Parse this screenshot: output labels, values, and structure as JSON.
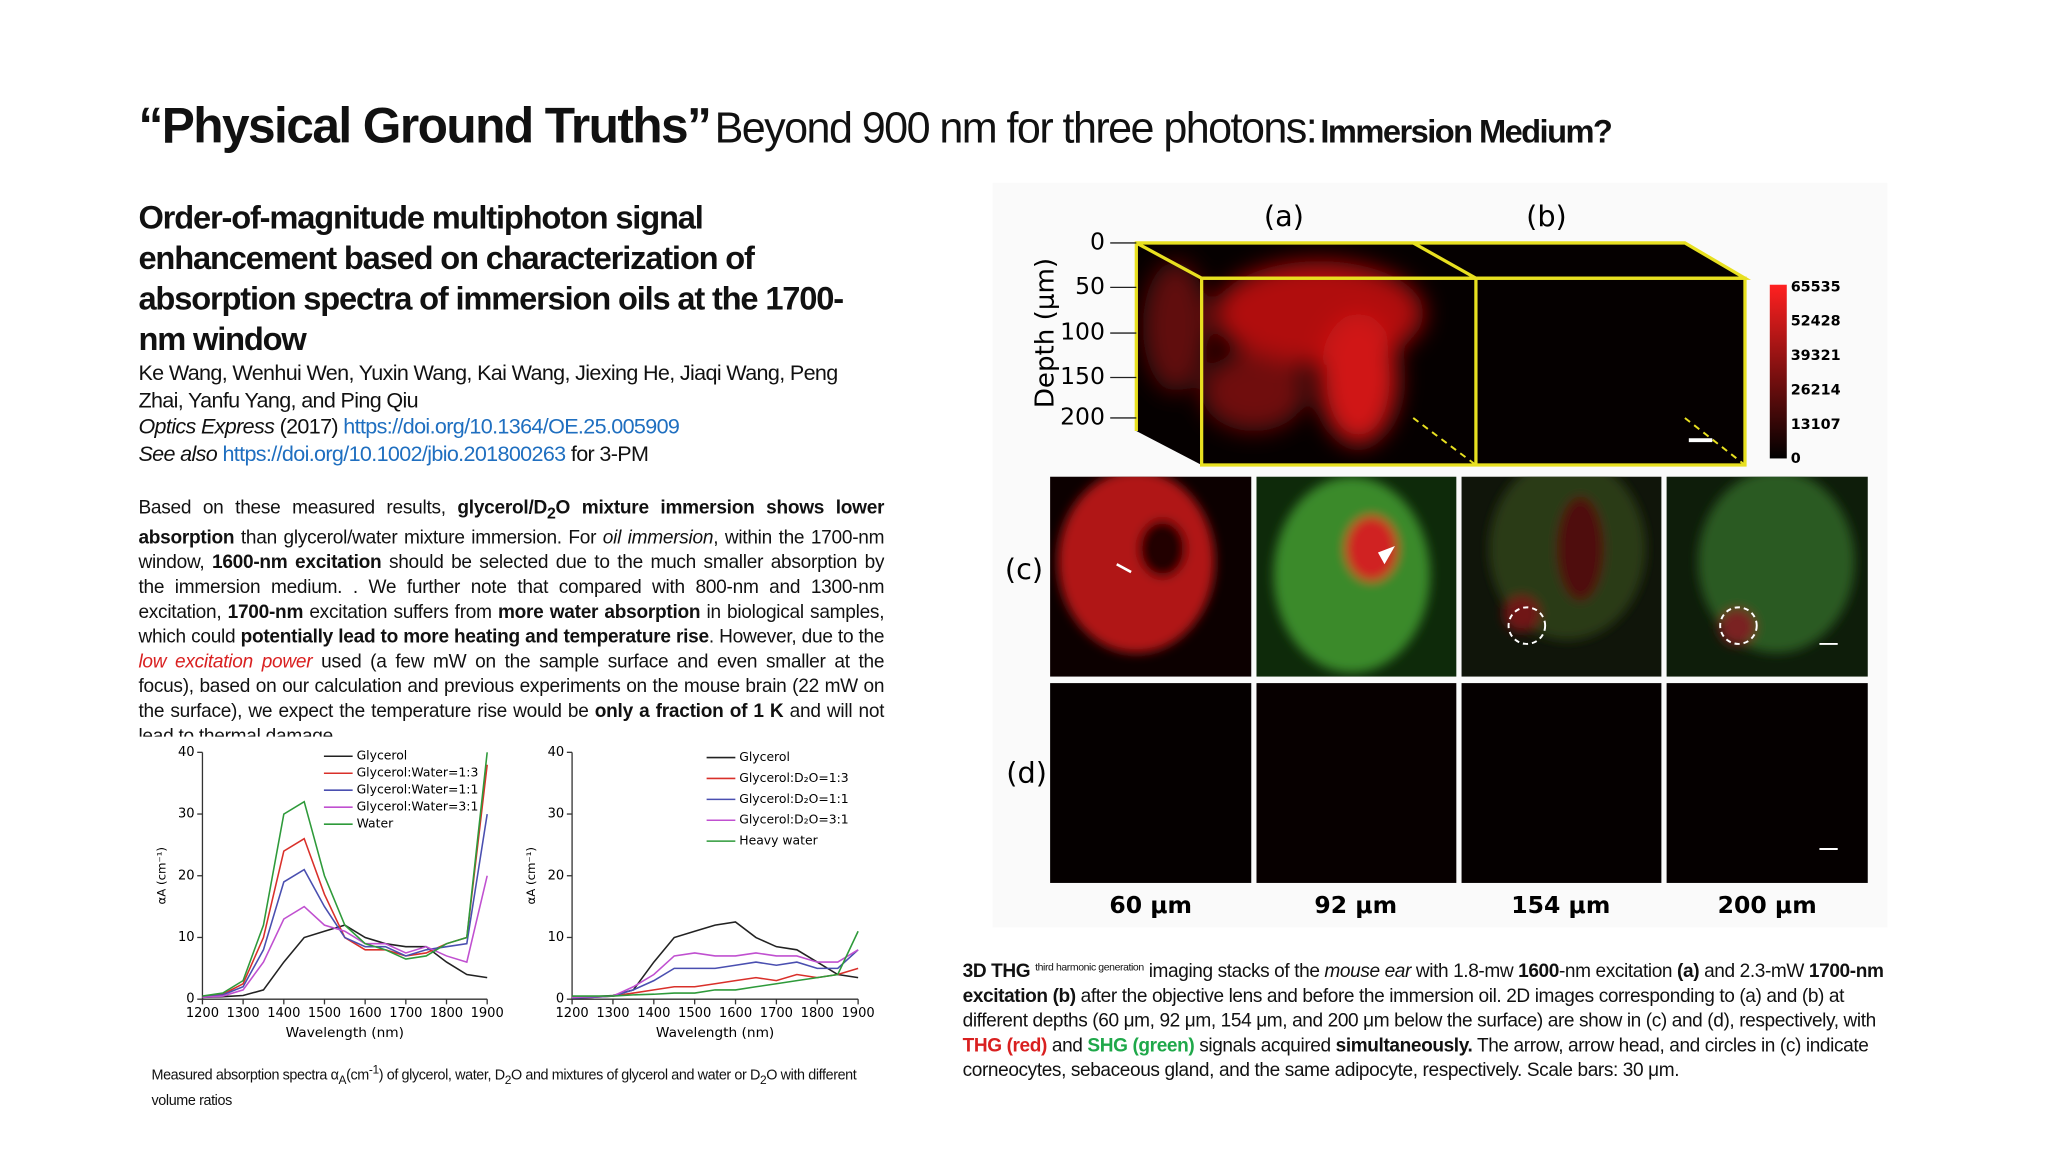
{
  "header": {
    "title_bold": "“Physical Ground Truths”",
    "title_regular": "Beyond 900 nm for three photons:",
    "title_tail": "Immersion Medium?"
  },
  "paper": {
    "title": "Order-of-magnitude multiphoton signal enhancement based on characterization of absorption spectra of immersion oils at the 1700-nm window",
    "authors": "Ke Wang, Wenhui Wen, Yuxin Wang, Kai Wang, Jiexing He, Jiaqi Wang, Peng Zhai, Yanfu Yang, and Ping Qiu",
    "journal": "Optics Express",
    "year": "(2017)",
    "doi": "https://doi.org/10.1364/OE.25.005909",
    "see_also_label": "See also",
    "see_also_doi": "https://doi.org/10.1002/jbio.201800263",
    "see_also_note": "for 3-PM"
  },
  "body": {
    "runs": [
      "Based on these measured results, ",
      "glycerol/D",
      "2",
      "O mixture immersion shows lower absorption",
      " than glycerol/water mixture immersion. For ",
      "oil immersion",
      ", within the 1700-nm window, ",
      "1600-nm excitation",
      " should be selected due to the much smaller absorption by the immersion medium. . We further note that compared with 800-nm and 1300-nm excitation, ",
      "1700-nm",
      " excitation suffers from ",
      "more water absorption",
      " in biological samples, which could ",
      "potentially lead to more heating and temperature rise",
      ". However, due to the ",
      "low excitation power",
      " used (a few mW on the sample surface and even smaller at the focus), based on our calculation and previous experiments on the mouse brain (22 mW on the surface), we expect the temperature rise would be ",
      "only a fraction of 1 K",
      " and will not lead to thermal damage."
    ]
  },
  "left_caption": {
    "runs": [
      "Measured absorption spectra α",
      "A",
      "(cm",
      "-1",
      ") of glycerol, water, D",
      "2",
      "O and mixtures of glycerol and water or D",
      "2",
      "O with different volume ratios"
    ]
  },
  "chart_data": [
    {
      "type": "line",
      "xlabel": "Wavelength (nm)",
      "ylabel": "αA (cm⁻¹)",
      "x": [
        1200,
        1250,
        1300,
        1350,
        1400,
        1450,
        1500,
        1550,
        1600,
        1650,
        1700,
        1750,
        1800,
        1850,
        1900
      ],
      "xlim": [
        1200,
        1900
      ],
      "xticks": [
        1200,
        1300,
        1400,
        1500,
        1600,
        1700,
        1800,
        1900
      ],
      "ylim": [
        0,
        40
      ],
      "yticks": [
        0,
        10,
        20,
        30,
        40
      ],
      "series": [
        {
          "name": "Glycerol",
          "color": "#222222",
          "values": [
            0.3,
            0.4,
            0.6,
            1.5,
            6,
            10,
            11,
            12,
            10,
            9,
            8.5,
            8.5,
            6,
            4,
            3.5
          ]
        },
        {
          "name": "Glycerol:Water=1:3",
          "color": "#d9302a",
          "values": [
            0.4,
            0.8,
            2.5,
            10,
            24,
            26,
            17,
            10,
            8,
            8,
            7,
            7.5,
            9,
            10,
            38
          ]
        },
        {
          "name": "Glycerol:Water=1:1",
          "color": "#4a4fb0",
          "values": [
            0.3,
            0.7,
            2,
            8,
            19,
            21,
            15,
            10,
            8.5,
            8.5,
            7,
            8,
            8.5,
            9,
            30
          ]
        },
        {
          "name": "Glycerol:Water=3:1",
          "color": "#c050d0",
          "values": [
            0.3,
            0.5,
            1.5,
            6,
            13,
            15,
            12,
            11,
            9,
            9,
            7.5,
            8.5,
            7,
            6,
            20
          ]
        },
        {
          "name": "Water",
          "color": "#2e9a3a",
          "values": [
            0.5,
            1,
            3,
            12,
            30,
            32,
            20,
            12,
            9,
            8,
            6.5,
            7,
            9,
            10,
            40
          ]
        }
      ]
    },
    {
      "type": "line",
      "xlabel": "Wavelength (nm)",
      "ylabel": "αA (cm⁻¹)",
      "x": [
        1200,
        1250,
        1300,
        1350,
        1400,
        1450,
        1500,
        1550,
        1600,
        1650,
        1700,
        1750,
        1800,
        1850,
        1900
      ],
      "xlim": [
        1200,
        1900
      ],
      "xticks": [
        1200,
        1300,
        1400,
        1500,
        1600,
        1700,
        1800,
        1900
      ],
      "ylim": [
        0,
        40
      ],
      "yticks": [
        0,
        10,
        20,
        30,
        40
      ],
      "series": [
        {
          "name": "Glycerol",
          "color": "#222222",
          "values": [
            0.3,
            0.4,
            0.6,
            1.5,
            6,
            10,
            11,
            12,
            12.5,
            10,
            8.5,
            8,
            6,
            4,
            3.5
          ]
        },
        {
          "name": "Glycerol:D₂O=1:3",
          "color": "#d9302a",
          "values": [
            0.2,
            0.3,
            0.5,
            1,
            1.5,
            2,
            2,
            2.5,
            3,
            3.5,
            3,
            4,
            3.5,
            4,
            5
          ]
        },
        {
          "name": "Glycerol:D₂O=1:1",
          "color": "#4a4fb0",
          "values": [
            0.2,
            0.3,
            0.5,
            1.5,
            3,
            5,
            5,
            5,
            5.5,
            6,
            5.5,
            6,
            5,
            5,
            8
          ]
        },
        {
          "name": "Glycerol:D₂O=3:1",
          "color": "#c050d0",
          "values": [
            0.3,
            0.4,
            0.5,
            2,
            4,
            7,
            7.5,
            7,
            7,
            7.5,
            7,
            7,
            6,
            6,
            8
          ]
        },
        {
          "name": "Heavy water",
          "color": "#2e9a3a",
          "values": [
            0.5,
            0.5,
            0.5,
            0.7,
            0.8,
            1,
            1,
            1.5,
            1.5,
            2,
            2.5,
            3,
            3.5,
            4,
            11
          ]
        }
      ]
    }
  ],
  "figure_right": {
    "panel_labels": [
      "(a)",
      "(b)",
      "(c)",
      "(d)"
    ],
    "depth_label": "Depth (μm)",
    "depth_ticks": [
      "0",
      "50",
      "100",
      "150",
      "200"
    ],
    "colorbar_ticks": [
      "65535",
      "52428",
      "39321",
      "26214",
      "13107",
      "0"
    ],
    "column_labels": [
      "60 μm",
      "92 μm",
      "154 μm",
      "200 μm"
    ],
    "caption_runs": [
      "3D THG",
      "third harmonic generation",
      " imaging stacks of the ",
      "mouse ear",
      " with 1.8-mw ",
      "1600",
      "-nm excitation ",
      "(a)",
      " and 2.3-mW ",
      "1700-nm excitation (b)",
      " after the objective lens and before the immersion oil. 2D images corresponding to (a) and (b) at different depths (60 μm, 92 μm, 154 μm, and 200 μm below the surface) are show in (c) and (d), respectively, with ",
      "THG (red)",
      " and ",
      "SHG (green)",
      " signals acquired ",
      "simultaneously.",
      " The arrow, arrow head, and circles in (c) indicate corneocytes, sebaceous gland, and the same adipocyte, respectively. Scale bars: 30 μm."
    ]
  }
}
